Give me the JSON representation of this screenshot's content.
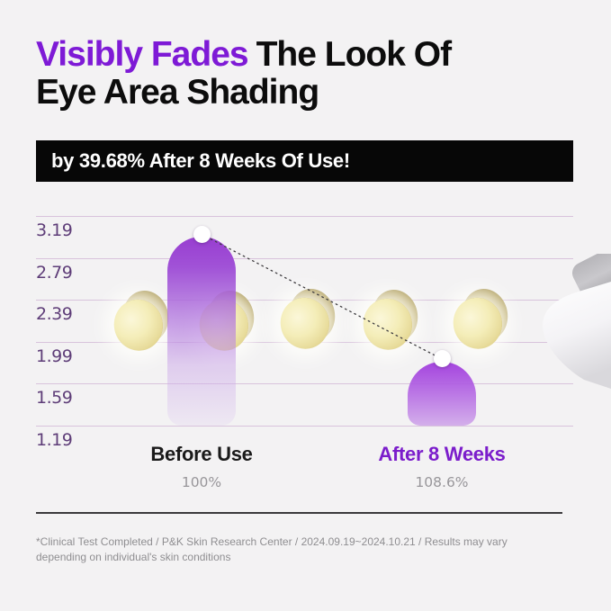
{
  "header": {
    "title_line1_highlight": "Visibly Fades",
    "title_line1_rest": "The Look Of",
    "title_line2": "Eye Area Shading",
    "banner_text": "by 39.68% After 8 Weeks Of Use!"
  },
  "chart_data": {
    "type": "bar",
    "title": "Eye area shading score before vs after use",
    "categories": [
      "Before Use",
      "After 8 Weeks"
    ],
    "values": [
      2.99,
      1.8
    ],
    "category_sublabels": [
      "100%",
      "108.6%"
    ],
    "y_ticks": [
      "3.19",
      "2.79",
      "2.39",
      "1.99",
      "1.59",
      "1.19"
    ],
    "ylim": [
      1.19,
      3.19
    ],
    "xlabel": "",
    "ylabel": "",
    "grid": true,
    "legend": false,
    "trend_line": {
      "style": "dotted",
      "connects": [
        "Before Use",
        "After 8 Weeks"
      ]
    },
    "decor": {
      "beads": "5 yellow capsule beads floating across chart",
      "product": "white cosmetic applicator tip entering from right edge"
    }
  },
  "colors": {
    "accent_purple": "#7e1ad6",
    "bar_purple_top": "#9a3fd2",
    "banner_bg": "#070707",
    "tick_purple": "#5e3d78",
    "grid_mauve": "#d8c3dc"
  },
  "footer": {
    "disclaimer": "*Clinical Test Completed / P&K Skin Research Center / 2024.09.19~2024.10.21 / Results may vary depending on individual's skin conditions"
  }
}
